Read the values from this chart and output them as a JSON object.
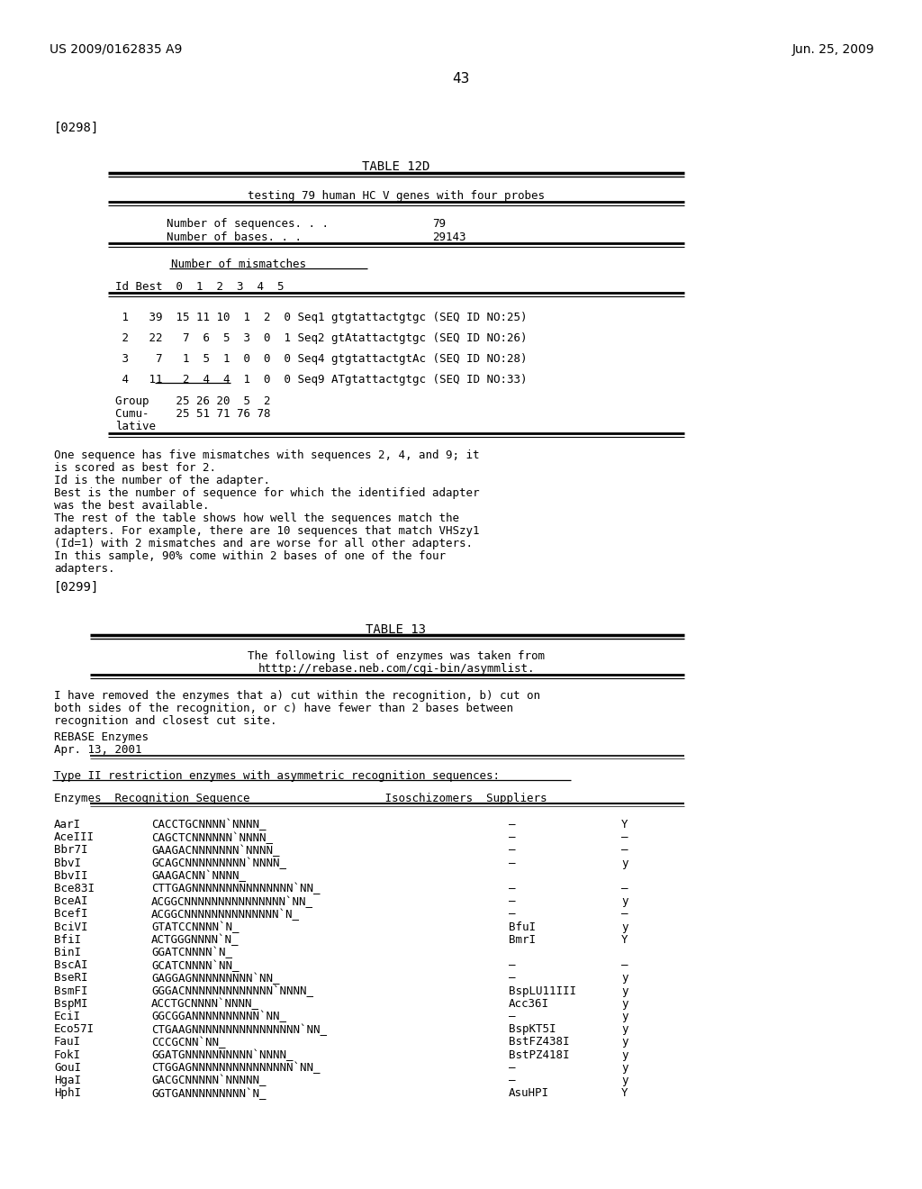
{
  "bg_color": "#ffffff",
  "header_left": "US 2009/0162835 A9",
  "header_right": "Jun. 25, 2009",
  "page_number": "43",
  "section1_label": "[0298]",
  "table12d_title": "TABLE 12D",
  "table12d_subtitle": "testing 79 human HC V genes with four probes",
  "table12d_seq_label": "Number of sequences. . .",
  "table12d_seq_val": "79",
  "table12d_base_label": "Number of bases. . .",
  "table12d_base_val": "29143",
  "table12d_mismatches_header": "Number of mismatches",
  "table12d_col_header": "Id Best  0  1   2   3  4  5",
  "table12d_rows": [
    " 1   39  15 11  10   1  2  0 Seq1 gtgtattactgtgc (SEQ ID NO:25)",
    " 2   22   7  6   5   3  0  1 Seq2 gtAtattactgtgc (SEQ ID NO:26)",
    " 3    7   1  5   1   0  0  0 Seq4 gtgtattactgtAc (SEQ ID NO:28)",
    " 4   11   2  4   4   1  0  0 Seq9 ATgtattactgtgc (SEQ ID NO:33)"
  ],
  "table12d_group1": "Group    25 26 20  5  2",
  "table12d_group2": "Cumu-    25 51 71 76 78",
  "table12d_group3": "lative",
  "table12d_footer": [
    "One sequence has five mismatches with sequences 2, 4, and 9; it",
    "is scored as best for 2.",
    "Id is the number of the adapter.",
    "Best is the number of sequence for which the identified adapter",
    "was the best available.",
    "The rest of the table shows how well the sequences match the",
    "adapters. For example, there are 10 sequences that match VHSzy1",
    "(Id=1) with 2 mismatches and are worse for all other adapters.",
    "In this sample, 90% come within 2 bases of one of the four",
    "adapters."
  ],
  "section2_label": "[0299]",
  "table13_title": "TABLE 13",
  "table13_sub1": "The following list of enzymes was taken from",
  "table13_sub2": "htttp://rebase.neb.com/cgi-bin/asymmlist.",
  "table13_intro": [
    "I have removed the enzymes that a) cut within the recognition, b) cut on",
    "both sides of the recognition, or c) have fewer than 2 bases between",
    "recognition and closest cut site."
  ],
  "table13_rebase1": "REBASE Enzymes",
  "table13_rebase2": "Apr. 13, 2001",
  "table13_type_header": "Type II restriction enzymes with asymmetric recognition sequences:",
  "table13_col_header": "Enzymes  Recognition Sequence                    Isoschizomers  Suppliers",
  "table13_enzyme_rows": [
    [
      "AarI",
      "CACCTGCNNNN`NNNN_",
      "–",
      "Y"
    ],
    [
      "AceIII",
      "CAGCTCNNNNNN`NNNN_",
      "–",
      "–"
    ],
    [
      "Bbr7I",
      "GAAGACNNNNNNN`NNNN_",
      "–",
      "–"
    ],
    [
      "BbvI",
      "GCAGCNNNNNNNNN`NNNN_",
      "–",
      "y"
    ],
    [
      "BbvII",
      "GAAGACNN`NNNN_",
      "",
      ""
    ],
    [
      "Bce83I",
      "CTTGAGNNNNNNNNNNNNNNN`NN_",
      "–",
      "–"
    ],
    [
      "BceAI",
      "ACGGCNNNNNNNNNNNNNNN`NN_",
      "–",
      "y"
    ],
    [
      "BcefI",
      "ACGGCNNNNNNNNNNNNNN`N_",
      "–",
      "–"
    ],
    [
      "BciVI",
      "GTATCCNNNN`N_",
      "BfuI",
      "y"
    ],
    [
      "BfiI",
      "ACTGGGNNNN`N_",
      "BmrI",
      "Y"
    ],
    [
      "BinI",
      "GGATCNNNN`N_",
      "",
      ""
    ],
    [
      "BscAI",
      "GCATCNNNN`NN_",
      "–",
      "–"
    ],
    [
      "BseRI",
      "GAGGAGNNNNNNNNN`NN_",
      "–",
      "y"
    ],
    [
      "BsmFI",
      "GGGACNNNNNNNNNNNNN`NNNN_",
      "BspLU11III",
      "y"
    ],
    [
      "BspMI",
      "ACCTGCNNNN`NNNN_",
      "Acc36I",
      "y"
    ],
    [
      "EciI",
      "GGCGGANNNNNNNNNN`NN_",
      "–",
      "y"
    ],
    [
      "Eco57I",
      "CTGAAGNNNNNNNNNNNNNNNN`NN_",
      "BspKT5I",
      "y"
    ],
    [
      "FauI",
      "CCCGCNN`NN_",
      "BstFZ438I",
      "y"
    ],
    [
      "FokI",
      "GGATGNNNNNNNNNN`NNNN_",
      "BstPZ418I",
      "y"
    ],
    [
      "GouI",
      "CTGGAGNNNNNNNNNNNNNNN`NN_",
      "–",
      "y"
    ],
    [
      "HgaI",
      "GACGCNNNNN`NNNNN_",
      "–",
      "y"
    ],
    [
      "HphI",
      "GGTGANNNNNNNNN`N_",
      "AsuHPI",
      "Y"
    ]
  ]
}
